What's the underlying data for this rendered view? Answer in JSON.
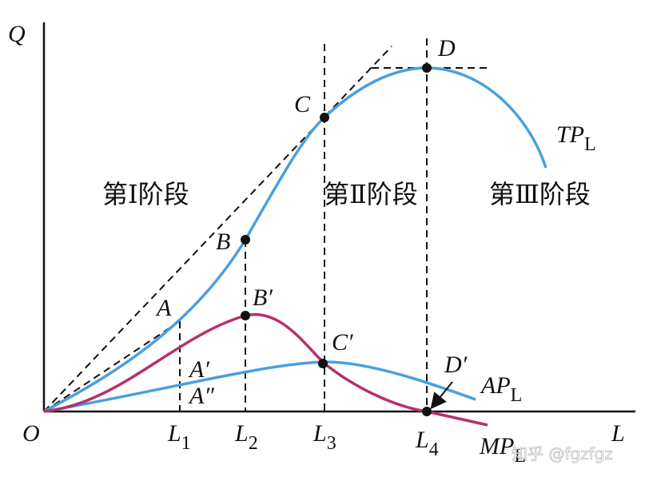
{
  "axes": {
    "y": "Q",
    "x": "L",
    "origin": "O"
  },
  "points": {
    "A": "A",
    "B": "B",
    "C": "C",
    "D": "D",
    "A1": "A′",
    "A2": "A″",
    "B1": "B′",
    "C1": "C′",
    "D1": "D′"
  },
  "curves": {
    "tp": {
      "text": "TP",
      "sub": "L"
    },
    "ap": {
      "text": "AP",
      "sub": "L"
    },
    "mp": {
      "text": "MP",
      "sub": "L"
    }
  },
  "x_marks": [
    {
      "text": "L",
      "sub": "1"
    },
    {
      "text": "L",
      "sub": "2"
    },
    {
      "text": "L",
      "sub": "3"
    },
    {
      "text": "L",
      "sub": "4"
    }
  ],
  "stages": [
    "第Ⅰ阶段",
    "第Ⅱ阶段",
    "第Ⅲ阶段"
  ],
  "watermark": "知乎 @fgzfgz"
}
